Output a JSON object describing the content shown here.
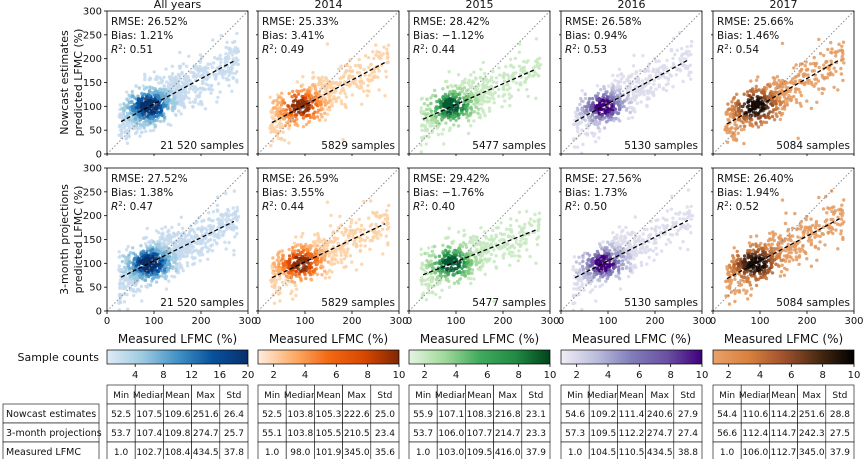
{
  "chart_data": {
    "type": "scatter",
    "columns": [
      "All years",
      "2014",
      "2015",
      "2016",
      "2017"
    ],
    "rows": [
      "Nowcast estimates",
      "3-month projections"
    ],
    "row_ylabels": [
      [
        "Nowcast estimates",
        "predicted LFMC (%)"
      ],
      [
        "3-month projections",
        "predicted LFMC (%)"
      ]
    ],
    "xlabel": "Measured LFMC (%)",
    "xlim": [
      0,
      300
    ],
    "ylim": [
      0,
      300
    ],
    "xticks": [
      0,
      100,
      200,
      300
    ],
    "yticks": [
      0,
      50,
      100,
      150,
      200,
      250,
      300
    ],
    "ytick_labels": [
      "0",
      "50",
      "100",
      "150",
      "200",
      "250",
      "300"
    ],
    "xtick_labels": [
      "0",
      "100",
      "200",
      "300"
    ],
    "reference_line": "1:1 dotted",
    "fit_line": "dashed",
    "panels": [
      [
        {
          "rmse": "RMSE: 26.52%",
          "bias": "Bias: 1.21%",
          "r2_label": "R",
          "r2_value": ": 0.51",
          "samples": "21 520 samples",
          "fit": [
            [
              30,
              68
            ],
            [
              270,
              195
            ]
          ]
        },
        {
          "rmse": "RMSE: 25.33%",
          "bias": "Bias: 3.41%",
          "r2_label": "R",
          "r2_value": ": 0.49",
          "samples": "5829 samples",
          "fit": [
            [
              30,
              66
            ],
            [
              270,
              192
            ]
          ]
        },
        {
          "rmse": "RMSE: 28.42%",
          "bias": "Bias: −1.12%",
          "r2_label": "R",
          "r2_value": ": 0.44",
          "samples": "5477 samples",
          "fit": [
            [
              30,
              73
            ],
            [
              270,
              178
            ]
          ]
        },
        {
          "rmse": "RMSE: 26.58%",
          "bias": "Bias: 0.94%",
          "r2_label": "R",
          "r2_value": ": 0.53",
          "samples": "5130 samples",
          "fit": [
            [
              30,
              68
            ],
            [
              270,
              197
            ]
          ]
        },
        {
          "rmse": "RMSE: 25.66%",
          "bias": "Bias: 1.46%",
          "r2_label": "R",
          "r2_value": ": 0.54",
          "samples": "5084 samples",
          "fit": [
            [
              30,
              63
            ],
            [
              270,
              198
            ]
          ]
        }
      ],
      [
        {
          "rmse": "RMSE: 27.52%",
          "bias": "Bias: 1.38%",
          "r2_label": "R",
          "r2_value": ": 0.47",
          "samples": "21 520 samples",
          "fit": [
            [
              30,
              71
            ],
            [
              270,
              188
            ]
          ]
        },
        {
          "rmse": "RMSE: 26.59%",
          "bias": "Bias: 3.55%",
          "r2_label": "R",
          "r2_value": ": 0.44",
          "samples": "5829 samples",
          "fit": [
            [
              30,
              70
            ],
            [
              270,
              183
            ]
          ]
        },
        {
          "rmse": "RMSE: 29.42%",
          "bias": "Bias: −1.76%",
          "r2_label": "R",
          "r2_value": ": 0.40",
          "samples": "5477 samples",
          "fit": [
            [
              30,
              76
            ],
            [
              270,
              170
            ]
          ]
        },
        {
          "rmse": "RMSE: 27.56%",
          "bias": "Bias: 1.73%",
          "r2_label": "R",
          "r2_value": ": 0.50",
          "samples": "5130 samples",
          "fit": [
            [
              30,
              70
            ],
            [
              270,
              190
            ]
          ]
        },
        {
          "rmse": "RMSE: 26.40%",
          "bias": "Bias: 1.94%",
          "r2_label": "R",
          "r2_value": ": 0.52",
          "samples": "5084 samples",
          "fit": [
            [
              30,
              68
            ],
            [
              270,
              194
            ]
          ]
        }
      ]
    ],
    "colorbars": [
      {
        "label": "Sample counts",
        "min": 0,
        "max": 20,
        "ticks": [
          "4",
          "8",
          "12",
          "16",
          "20"
        ],
        "tick_values": [
          4,
          8,
          12,
          16,
          20
        ],
        "colors": [
          "#deebf7",
          "#9ecae1",
          "#4292c6",
          "#08519c",
          "#08306b"
        ]
      },
      {
        "label": "",
        "min": 1,
        "max": 10,
        "ticks": [
          "2",
          "4",
          "6",
          "8",
          "10"
        ],
        "tick_values": [
          2,
          4,
          6,
          8,
          10
        ],
        "colors": [
          "#feedde",
          "#fdae6b",
          "#f16913",
          "#d94801",
          "#7f2704"
        ]
      },
      {
        "label": "",
        "min": 1,
        "max": 10,
        "ticks": [
          "2",
          "4",
          "6",
          "8",
          "10"
        ],
        "tick_values": [
          2,
          4,
          6,
          8,
          10
        ],
        "colors": [
          "#e5f5e0",
          "#a1d99b",
          "#41ab5d",
          "#238b45",
          "#00441b"
        ]
      },
      {
        "label": "",
        "min": 1,
        "max": 10,
        "ticks": [
          "2",
          "4",
          "6",
          "8",
          "10"
        ],
        "tick_values": [
          2,
          4,
          6,
          8,
          10
        ],
        "colors": [
          "#efedf5",
          "#bcbddc",
          "#807dba",
          "#6a51a3",
          "#3f007d"
        ]
      },
      {
        "label": "",
        "min": 1,
        "max": 10,
        "ticks": [
          "2",
          "4",
          "6",
          "8",
          "10"
        ],
        "tick_values": [
          2,
          4,
          6,
          8,
          10
        ],
        "colors": [
          "#e9a26a",
          "#d9813f",
          "#a0522d",
          "#4a2a12",
          "#000000"
        ]
      }
    ],
    "table": {
      "row_labels": [
        "Nowcast estimates",
        "3-month projections",
        "Measured LFMC"
      ],
      "headers": [
        "Min",
        "Median",
        "Mean",
        "Max",
        "Std"
      ],
      "groups": [
        [
          [
            "52.5",
            "107.5",
            "109.6",
            "251.6",
            "26.4"
          ],
          [
            "53.7",
            "107.4",
            "109.8",
            "274.7",
            "25.7"
          ],
          [
            "1.0",
            "102.7",
            "108.4",
            "434.5",
            "37.8"
          ]
        ],
        [
          [
            "52.5",
            "103.8",
            "105.3",
            "222.6",
            "25.0"
          ],
          [
            "55.1",
            "103.8",
            "105.5",
            "210.5",
            "23.4"
          ],
          [
            "1.0",
            "98.0",
            "101.9",
            "345.0",
            "35.6"
          ]
        ],
        [
          [
            "55.9",
            "107.1",
            "108.3",
            "216.8",
            "23.1"
          ],
          [
            "53.7",
            "106.0",
            "107.7",
            "214.7",
            "23.3"
          ],
          [
            "1.0",
            "103.0",
            "109.5",
            "416.0",
            "37.9"
          ]
        ],
        [
          [
            "54.6",
            "109.2",
            "111.4",
            "240.6",
            "27.9"
          ],
          [
            "57.3",
            "109.5",
            "112.2",
            "274.7",
            "27.4"
          ],
          [
            "1.0",
            "104.5",
            "110.5",
            "434.5",
            "38.8"
          ]
        ],
        [
          [
            "54.4",
            "110.6",
            "114.2",
            "251.6",
            "28.8"
          ],
          [
            "56.6",
            "112.4",
            "114.7",
            "242.3",
            "27.5"
          ],
          [
            "1.0",
            "106.0",
            "112.7",
            "345.0",
            "37.9"
          ]
        ]
      ]
    },
    "palettes": {
      "blue": [
        "#c6dbef",
        "#9ecae1",
        "#6baed6",
        "#3182bd",
        "#08519c",
        "#08306b"
      ],
      "orange": [
        "#fdd0a2",
        "#fdae6b",
        "#fd8d3c",
        "#f16913",
        "#d94801",
        "#8c2d04"
      ],
      "green": [
        "#c7e9c0",
        "#a1d99b",
        "#74c476",
        "#41ab5d",
        "#238b45",
        "#005a32"
      ],
      "purple": [
        "#dadaeb",
        "#bcbddc",
        "#9e9ac8",
        "#807dba",
        "#6a51a3",
        "#3f007d"
      ],
      "copper": [
        "#e49a5f",
        "#d07c3e",
        "#b5632b",
        "#8a4520",
        "#4a2510",
        "#1a0c04"
      ]
    },
    "palette_order": [
      "blue",
      "orange",
      "green",
      "purple",
      "copper"
    ]
  }
}
